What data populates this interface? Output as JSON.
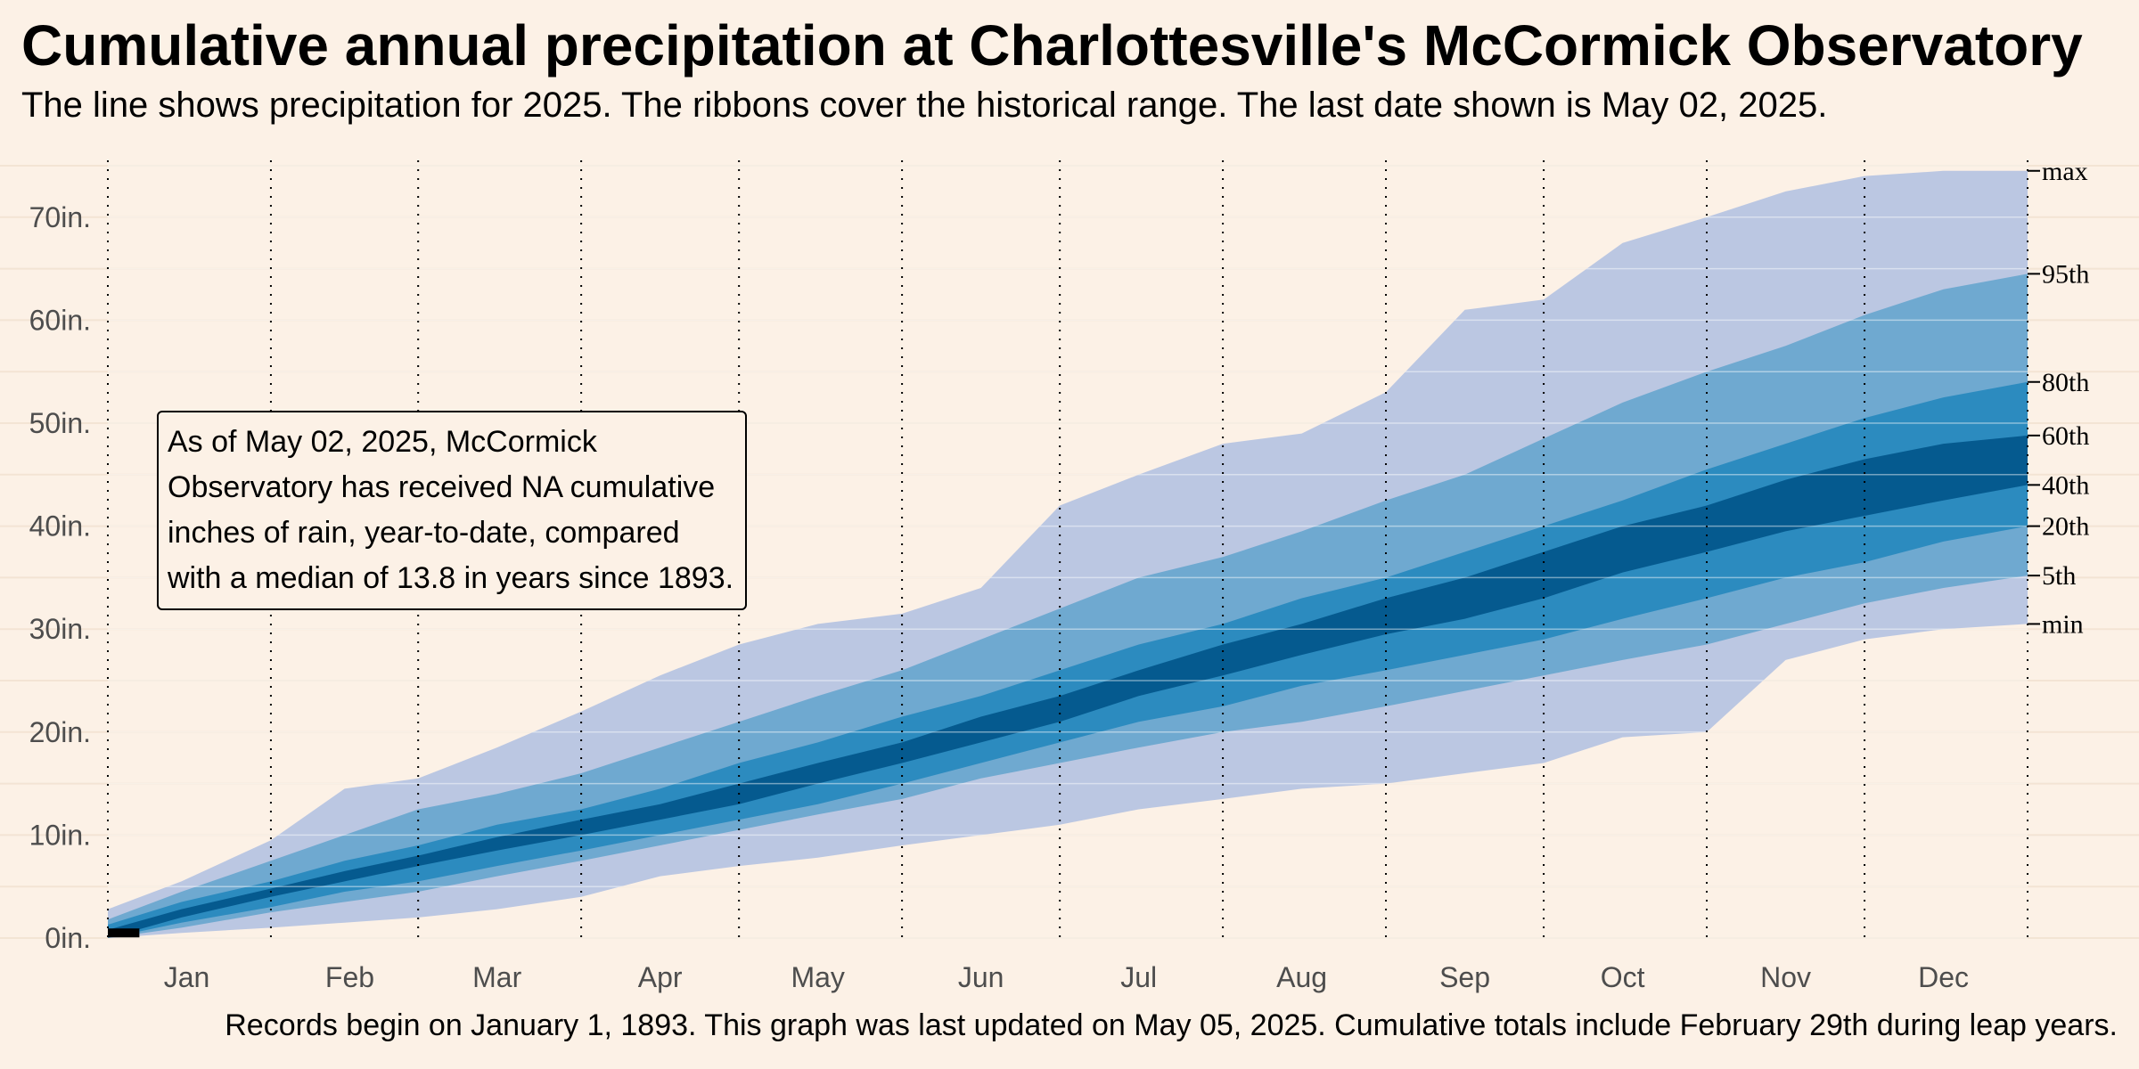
{
  "title": "Cumulative annual precipitation at Charlottesville's McCormick Observatory",
  "subtitle": "The line shows precipitation for 2025. The ribbons cover the historical range. The last date shown is May 02, 2025.",
  "caption": "Records begin on January 1, 1893. This graph was last updated on May 05, 2025. Cumulative totals include February 29th during leap years.",
  "annotation": "As of May 02, 2025, McCormick Observatory has received NA cumulative inches of rain, year-to-date, compared with a median of 13.8 in years since 1893.",
  "colors": {
    "background": "#FCF1E6",
    "band_min_max": "#BBC7E2",
    "band_5_95": "#6FA9D0",
    "band_20_80": "#2C8BBF",
    "band_40_60": "#055A8F",
    "line_2025": "#000000"
  },
  "chart_data": {
    "type": "area",
    "x_unit": "day of year",
    "y_unit": "in.",
    "xlim": [
      1,
      366
    ],
    "ylim": [
      0,
      75
    ],
    "grid": true,
    "month_labels": [
      "Jan",
      "Feb",
      "Mar",
      "Apr",
      "May",
      "Jun",
      "Jul",
      "Aug",
      "Sep",
      "Oct",
      "Nov",
      "Dec"
    ],
    "month_label_days": [
      16,
      47,
      75,
      106,
      136,
      167,
      197,
      228,
      259,
      289,
      320,
      350
    ],
    "month_boundary_days": [
      1,
      32,
      60,
      91,
      121,
      152,
      182,
      213,
      244,
      274,
      305,
      335,
      366
    ],
    "y_ticks": [
      0,
      10,
      20,
      30,
      40,
      50,
      60,
      70
    ],
    "y_tick_labels": [
      "0in.",
      "10in.",
      "20in.",
      "30in.",
      "40in.",
      "50in.",
      "60in.",
      "70in."
    ],
    "band_labels": [
      {
        "label": "max",
        "value": 74.5
      },
      {
        "label": "95th",
        "value": 64.5
      },
      {
        "label": "80th",
        "value": 54
      },
      {
        "label": "60th",
        "value": 48.8
      },
      {
        "label": "40th",
        "value": 44
      },
      {
        "label": "20th",
        "value": 40
      },
      {
        "label": "5th",
        "value": 35.2
      },
      {
        "label": "min",
        "value": 30.5
      }
    ],
    "days": [
      1,
      15,
      32,
      46,
      60,
      75,
      91,
      106,
      121,
      136,
      152,
      167,
      182,
      197,
      213,
      228,
      244,
      259,
      274,
      289,
      305,
      320,
      335,
      350,
      366
    ],
    "bands": [
      {
        "name": "min-max",
        "lower": [
          0,
          0.5,
          1.0,
          1.5,
          2.0,
          2.8,
          4.0,
          6.0,
          7.0,
          7.8,
          9.0,
          10.0,
          11.0,
          12.5,
          13.5,
          14.5,
          15.0,
          16.0,
          17.0,
          19.5,
          20.0,
          27.0,
          29.0,
          30.0,
          30.5
        ],
        "upper": [
          2.8,
          5.5,
          9.5,
          14.5,
          15.5,
          18.5,
          22.0,
          25.5,
          28.5,
          30.5,
          31.5,
          34.0,
          42.0,
          45.0,
          48.0,
          49.0,
          53.0,
          61.0,
          62.0,
          67.5,
          70.0,
          72.5,
          74.0,
          74.5,
          74.5
        ]
      },
      {
        "name": "5th-95th",
        "lower": [
          0,
          1.0,
          2.5,
          3.5,
          4.5,
          6.0,
          7.5,
          9.0,
          10.5,
          12.0,
          13.5,
          15.5,
          17.0,
          18.5,
          20.0,
          21.0,
          22.5,
          24.0,
          25.5,
          27.0,
          28.5,
          30.5,
          32.5,
          34.0,
          35.2
        ],
        "upper": [
          1.8,
          4.5,
          7.5,
          10.0,
          12.5,
          14.0,
          16.0,
          18.5,
          21.0,
          23.5,
          26.0,
          29.0,
          32.0,
          35.0,
          37.0,
          39.5,
          42.5,
          45.0,
          48.5,
          52.0,
          55.0,
          57.5,
          60.5,
          63.0,
          64.5
        ]
      },
      {
        "name": "20th-80th",
        "lower": [
          0,
          1.5,
          3.0,
          4.5,
          5.5,
          7.0,
          8.5,
          10.0,
          11.5,
          13.0,
          15.0,
          17.0,
          19.0,
          21.0,
          22.5,
          24.5,
          26.0,
          27.5,
          29.0,
          31.0,
          33.0,
          35.0,
          36.5,
          38.5,
          40.0
        ],
        "upper": [
          1.3,
          3.5,
          5.5,
          7.5,
          9.0,
          11.0,
          12.5,
          14.5,
          17.0,
          19.0,
          21.5,
          23.5,
          26.0,
          28.5,
          30.5,
          33.0,
          35.0,
          37.5,
          40.0,
          42.5,
          45.5,
          48.0,
          50.5,
          52.5,
          54.0
        ]
      },
      {
        "name": "40th-60th",
        "lower": [
          0,
          2.0,
          4.0,
          5.5,
          7.0,
          8.5,
          10.0,
          11.5,
          13.0,
          15.0,
          17.0,
          19.0,
          21.0,
          23.5,
          25.5,
          27.5,
          29.5,
          31.0,
          33.0,
          35.5,
          37.5,
          39.5,
          41.0,
          42.5,
          44.0
        ],
        "upper": [
          0.8,
          2.8,
          4.8,
          6.5,
          8.0,
          9.8,
          11.5,
          13.0,
          15.0,
          17.0,
          19.0,
          21.5,
          23.5,
          26.0,
          28.5,
          30.5,
          33.0,
          35.0,
          37.5,
          40.0,
          42.0,
          44.5,
          46.5,
          48.0,
          48.8
        ]
      }
    ],
    "series_2025": {
      "x": [
        1,
        7
      ],
      "y": [
        0.5,
        0.5
      ]
    }
  }
}
